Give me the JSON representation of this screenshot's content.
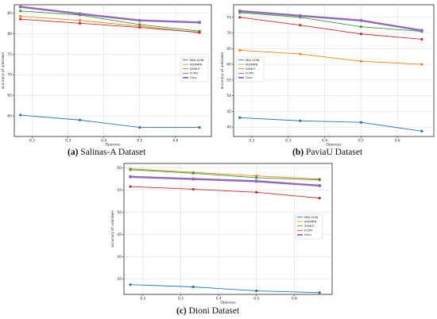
{
  "panels": [
    {
      "letter": "(a)",
      "caption": "Salinas-A Dataset"
    },
    {
      "letter": "(b)",
      "caption": "PaviaU Dataset"
    },
    {
      "letter": "(c)",
      "caption": "Dioni Dataset"
    }
  ],
  "chart_data": [
    {
      "type": "line",
      "xlabel": "Openess",
      "ylabel": "accuracy of unknown",
      "xlim": [
        0.15,
        0.7
      ],
      "ylim": [
        55,
        87
      ],
      "xticks": [
        0.2,
        0.3,
        0.4,
        0.5,
        0.6
      ],
      "yticks": [
        60,
        65,
        70,
        75,
        80,
        85
      ],
      "grid": true,
      "legend": "center-right",
      "x": [
        0.167,
        0.333,
        0.5,
        0.667
      ],
      "series": [
        {
          "name": "MDL4OW",
          "color": "#1f77b4",
          "values": [
            60.2,
            59.0,
            57.2,
            57.2
          ]
        },
        {
          "name": "IADMRN",
          "color": "#ff7f0e",
          "values": [
            84.2,
            83.2,
            81.8,
            80.2
          ]
        },
        {
          "name": "SSMLP",
          "color": "#2ca02c",
          "values": [
            85.5,
            84.5,
            82.2,
            80.6
          ]
        },
        {
          "name": "FCPN",
          "color": "#d62728",
          "values": [
            83.5,
            82.5,
            81.5,
            80.3
          ]
        },
        {
          "name": "Ours",
          "color": "#9467bd",
          "values": [
            86.5,
            84.8,
            83.2,
            82.7
          ]
        }
      ]
    },
    {
      "type": "line",
      "xlabel": "Openess",
      "ylabel": "accuracy of unknown",
      "xlim": [
        0.15,
        0.7
      ],
      "ylim": [
        37,
        79
      ],
      "xticks": [
        0.2,
        0.3,
        0.4,
        0.5,
        0.6
      ],
      "yticks": [
        40,
        45,
        50,
        55,
        60,
        65,
        70,
        75
      ],
      "grid": true,
      "legend": "center-left",
      "x": [
        0.167,
        0.333,
        0.5,
        0.667
      ],
      "series": [
        {
          "name": "MDL4OW",
          "color": "#1f77b4",
          "values": [
            43.0,
            42.0,
            41.5,
            38.7
          ]
        },
        {
          "name": "IADMRN",
          "color": "#ff7f0e",
          "values": [
            64.5,
            63.3,
            61.0,
            60.0
          ]
        },
        {
          "name": "SSMLP",
          "color": "#2ca02c",
          "values": [
            76.5,
            75.0,
            72.0,
            70.5
          ]
        },
        {
          "name": "FCPN",
          "color": "#d62728",
          "values": [
            75.0,
            72.5,
            69.7,
            68.0
          ]
        },
        {
          "name": "Ours",
          "color": "#9467bd",
          "values": [
            77.0,
            75.5,
            74.0,
            70.8
          ]
        }
      ]
    },
    {
      "type": "line",
      "xlabel": "Openess",
      "ylabel": "accuracy of unknown",
      "xlim": [
        0.15,
        0.7
      ],
      "ylim": [
        31.5,
        61
      ],
      "xticks": [
        0.2,
        0.3,
        0.4,
        0.5,
        0.6
      ],
      "yticks": [
        35,
        40,
        45,
        50,
        55,
        60
      ],
      "grid": true,
      "legend": "center-right",
      "x": [
        0.167,
        0.333,
        0.5,
        0.667
      ],
      "series": [
        {
          "name": "MDL4OW",
          "color": "#1f77b4",
          "values": [
            33.7,
            33.2,
            32.3,
            31.9
          ]
        },
        {
          "name": "IADMRN",
          "color": "#ff7f0e",
          "values": [
            59.8,
            59.0,
            58.2,
            57.5
          ]
        },
        {
          "name": "SSMLP",
          "color": "#2ca02c",
          "values": [
            59.6,
            58.8,
            57.8,
            57.3
          ]
        },
        {
          "name": "FCPN",
          "color": "#d62728",
          "values": [
            55.8,
            55.2,
            54.5,
            53.2
          ]
        },
        {
          "name": "Ours",
          "color": "#9467bd",
          "values": [
            58.0,
            57.5,
            57.0,
            56.0
          ]
        }
      ]
    }
  ]
}
